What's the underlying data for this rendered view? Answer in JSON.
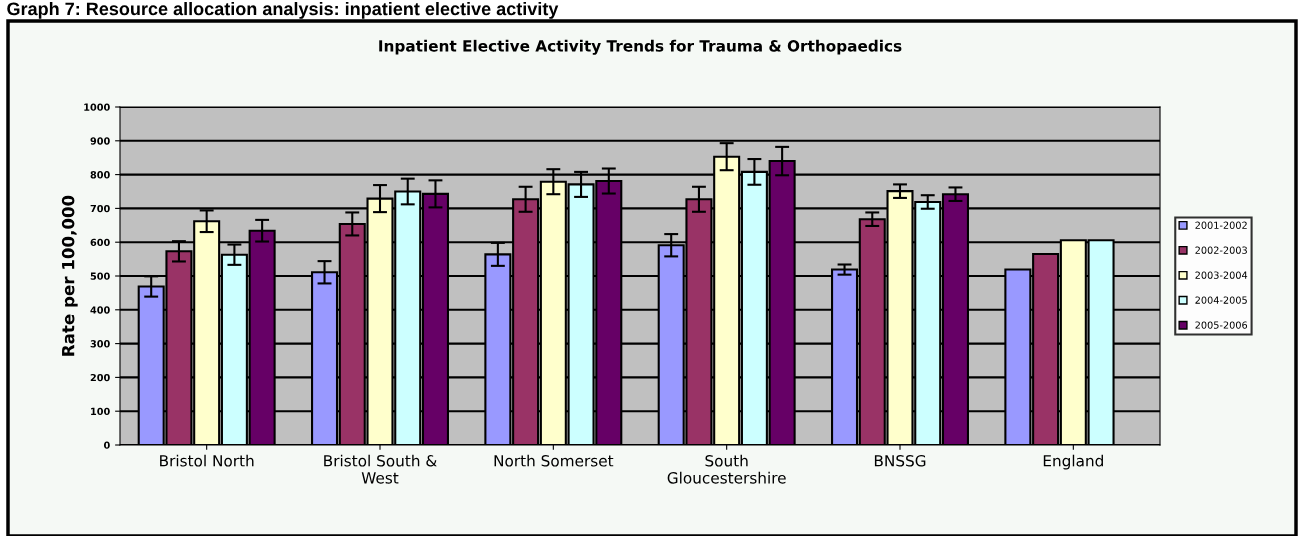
{
  "chart_data": {
    "type": "bar",
    "title": "Inpatient Elective Activity Trends for Trauma & Orthopaedics",
    "ylabel": "Rate per 100,000",
    "annotations": [
      "Graph 7: Resource allocation analysis: inpatient elective activity"
    ],
    "categories": [
      "Bristol North",
      "Bristol South &\nWest",
      "North Somerset",
      "South\nGloucestershire",
      "BNSSG",
      "England"
    ],
    "series": [
      {
        "name": "2001-2002",
        "color": "#9999ff",
        "values": [
          469,
          511,
          564,
          591,
          519,
          519
        ],
        "errors": [
          30,
          33,
          34,
          33,
          15,
          null
        ]
      },
      {
        "name": "2002-2003",
        "color": "#993366",
        "values": [
          573,
          654,
          727,
          727,
          668,
          565
        ],
        "errors": [
          30,
          34,
          37,
          37,
          20,
          null
        ]
      },
      {
        "name": "2003-2004",
        "color": "#ffffcc",
        "values": [
          662,
          729,
          779,
          853,
          751,
          606
        ],
        "errors": [
          32,
          40,
          37,
          40,
          20,
          null
        ]
      },
      {
        "name": "2004-2005",
        "color": "#ccffff",
        "values": [
          563,
          750,
          771,
          808,
          719,
          606
        ],
        "errors": [
          30,
          38,
          37,
          38,
          20,
          null
        ]
      },
      {
        "name": "2005-2006",
        "color": "#660066",
        "values": [
          634,
          743,
          781,
          840,
          742,
          null
        ],
        "errors": [
          32,
          40,
          37,
          42,
          20,
          null
        ]
      }
    ],
    "ylim": [
      0,
      1000
    ],
    "yticks": [
      0,
      100,
      200,
      300,
      400,
      500,
      600,
      700,
      800,
      900,
      1000
    ],
    "grid": "y",
    "legend": "right"
  }
}
